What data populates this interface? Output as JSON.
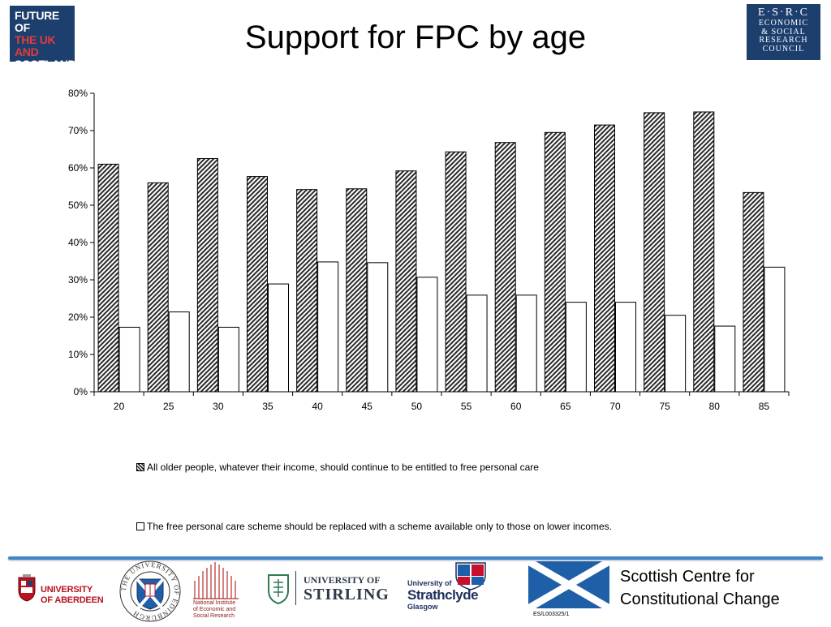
{
  "header": {
    "title": "Support for FPC by age",
    "logo_left_lines": [
      "FUTURE OF",
      "THE UK AND",
      "SCOTLAND"
    ],
    "logo_right_top": "E·S·R·C",
    "logo_right_lines": [
      "ECONOMIC",
      "& SOCIAL",
      "RESEARCH",
      "COUNCIL"
    ]
  },
  "chart_data": {
    "type": "bar",
    "categories": [
      "20",
      "25",
      "30",
      "35",
      "40",
      "45",
      "50",
      "55",
      "60",
      "65",
      "70",
      "75",
      "80",
      "85"
    ],
    "series": [
      {
        "name": "All older people, whatever their income, should continue to be entitled to free personal care",
        "pattern": "diagonal-hatch",
        "values": [
          61,
          56,
          62.5,
          57.7,
          54.2,
          54.4,
          59.2,
          64.3,
          66.8,
          69.5,
          71.5,
          74.8,
          75,
          53.4
        ]
      },
      {
        "name": "The free personal care scheme should be replaced with a scheme available only to those on lower incomes.",
        "pattern": "white",
        "values": [
          17.3,
          21.4,
          17.3,
          28.9,
          34.8,
          34.6,
          30.7,
          25.9,
          25.9,
          24,
          24,
          20.5,
          17.6,
          33.4
        ]
      }
    ],
    "yticks": [
      "0%",
      "10%",
      "20%",
      "30%",
      "40%",
      "50%",
      "60%",
      "70%",
      "80%"
    ],
    "ylim": [
      0,
      80
    ],
    "grid": false,
    "legend_position": "bottom",
    "title": "",
    "xlabel": "",
    "ylabel": ""
  },
  "footer": {
    "aberdeen_lines": [
      "UNIVERSITY",
      "OF ABERDEEN"
    ],
    "edinburgh_ring": "THE UNIVERSITY OF EDINBURGH",
    "niesr_lines": [
      "National Institute",
      "of Economic and",
      "Social Research"
    ],
    "stirling_top": "UNIVERSITY OF",
    "stirling_main": "STIRLING",
    "strathclyde_top": "University of",
    "strathclyde_main": "Strathclyde",
    "strathclyde_sub": "Glasgow",
    "ref_code": "ES/L003325/1",
    "centre_lines": [
      "Scottish Centre for",
      "Constitutional Change"
    ]
  },
  "colors": {
    "navy": "#1d3f6e",
    "divider_blue": "#3f86c6",
    "aberdeen_red": "#b7121f",
    "saltire_blue": "#1f5fa8"
  }
}
